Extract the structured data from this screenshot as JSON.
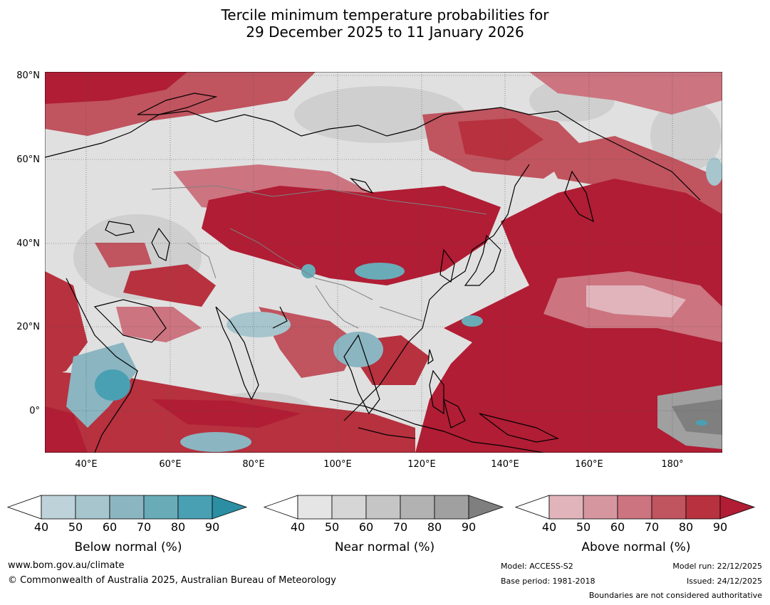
{
  "title": {
    "line1": "Tercile minimum temperature probabilities for",
    "line2": "29 December 2025 to 11 January 2026"
  },
  "map": {
    "lat_labels": [
      "80°N",
      "60°N",
      "40°N",
      "20°N",
      "0°"
    ],
    "lon_labels": [
      "40°E",
      "60°E",
      "80°E",
      "100°E",
      "120°E",
      "140°E",
      "160°E",
      "180°"
    ],
    "category_colors": {
      "below": [
        "#bdd2d9",
        "#a6c5cc",
        "#8bb5c1",
        "#6aabb8",
        "#49a0b3",
        "#2b8ea3"
      ],
      "near": [
        "#e5e5e5",
        "#d6d6d6",
        "#c5c5c5",
        "#b2b2b2",
        "#a0a0a0",
        "#7f7f7f"
      ],
      "above": [
        "#e1b4bb",
        "#d6969f",
        "#cc7480",
        "#c0545f",
        "#b7313f",
        "#b01d34"
      ]
    }
  },
  "colorbars": [
    {
      "id": "below",
      "title": "Below normal (%)",
      "ticks": [
        "40",
        "50",
        "60",
        "70",
        "80",
        "90"
      ]
    },
    {
      "id": "near",
      "title": "Near normal (%)",
      "ticks": [
        "40",
        "50",
        "60",
        "70",
        "80",
        "90"
      ]
    },
    {
      "id": "above",
      "title": "Above normal (%)",
      "ticks": [
        "40",
        "50",
        "60",
        "70",
        "80",
        "90"
      ]
    }
  ],
  "footer": {
    "website": "www.bom.gov.au/climate",
    "copyright": "© Commonwealth of Australia 2025, Australian Bureau of Meteorology",
    "model": "Model: ACCESS-S2",
    "base_period": "Base period: 1981-2018",
    "model_run": "Model run: 22/12/2025",
    "issued": "Issued: 24/12/2025",
    "disclaimer": "Boundaries are not considered authoritative"
  }
}
